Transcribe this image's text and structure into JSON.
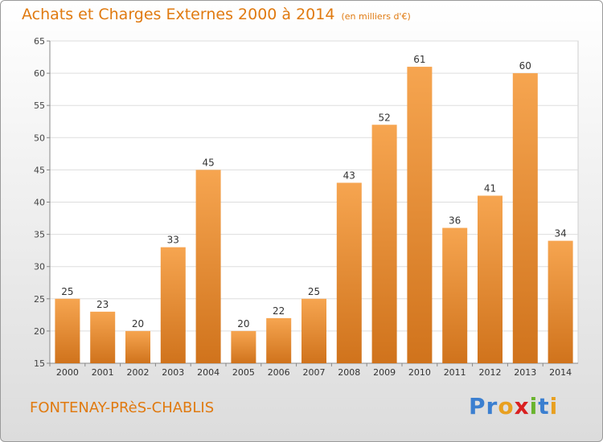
{
  "title": "Achats et Charges Externes 2000 à 2014",
  "unit": "(en milliers d'€)",
  "location": "FONTENAY-PRèS-CHABLIS",
  "brand": {
    "text": "Proxiti",
    "letter_colors": [
      "#3b7fd0",
      "#3b7fd0",
      "#e8a020",
      "#d92020",
      "#6ab42e",
      "#3b7fd0",
      "#e8a020"
    ]
  },
  "colors": {
    "accent": "#e07a10",
    "bar_top": "#f6a550",
    "bar_bottom": "#d0731c"
  },
  "chart_data": {
    "type": "bar",
    "categories": [
      "2000",
      "2001",
      "2002",
      "2003",
      "2004",
      "2005",
      "2006",
      "2007",
      "2008",
      "2009",
      "2010",
      "2011",
      "2012",
      "2013",
      "2014"
    ],
    "values": [
      25,
      23,
      20,
      33,
      45,
      20,
      22,
      25,
      43,
      52,
      61,
      36,
      41,
      60,
      34
    ],
    "ylim": [
      15,
      65
    ],
    "yticks": [
      15,
      20,
      25,
      30,
      35,
      40,
      45,
      50,
      55,
      60,
      65
    ],
    "grid": true
  }
}
